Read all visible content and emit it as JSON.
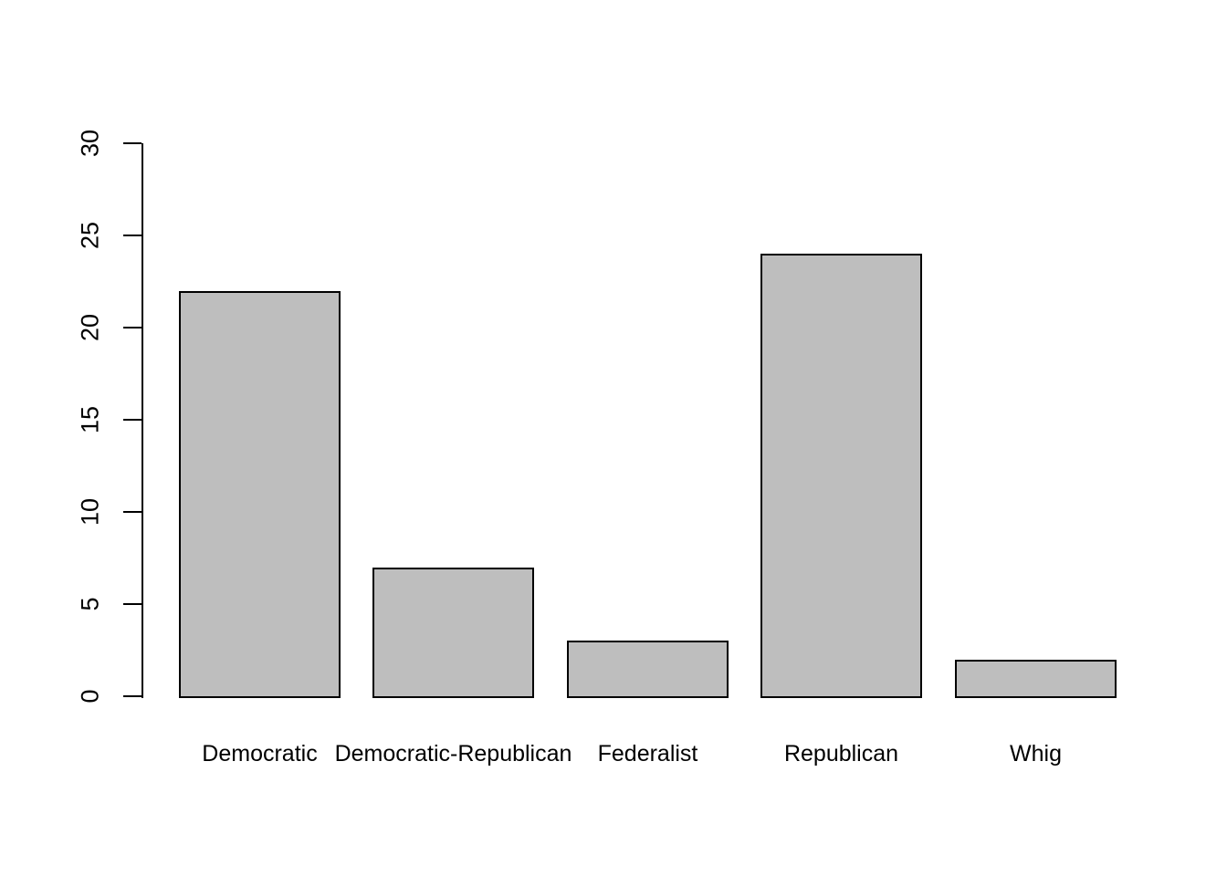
{
  "chart_data": {
    "type": "bar",
    "title": "",
    "xlabel": "",
    "ylabel": "",
    "categories": [
      "Democratic",
      "Democratic-Republican",
      "Federalist",
      "Republican",
      "Whig"
    ],
    "values": [
      22,
      7,
      3,
      24,
      2
    ],
    "ylim": [
      0,
      30
    ],
    "yticks": [
      0,
      5,
      10,
      15,
      20,
      25,
      30
    ],
    "ytick_labels": [
      "0",
      "5",
      "10",
      "15",
      "20",
      "25",
      "30"
    ],
    "ytick_label_rotation_deg": 90,
    "grid": false,
    "legend_position": "none",
    "bar_fill_color": "#BEBEBE",
    "bar_border_color": "#000000",
    "axis_color": "#000000",
    "text_color": "#000000",
    "background_color": "#FFFFFF"
  }
}
